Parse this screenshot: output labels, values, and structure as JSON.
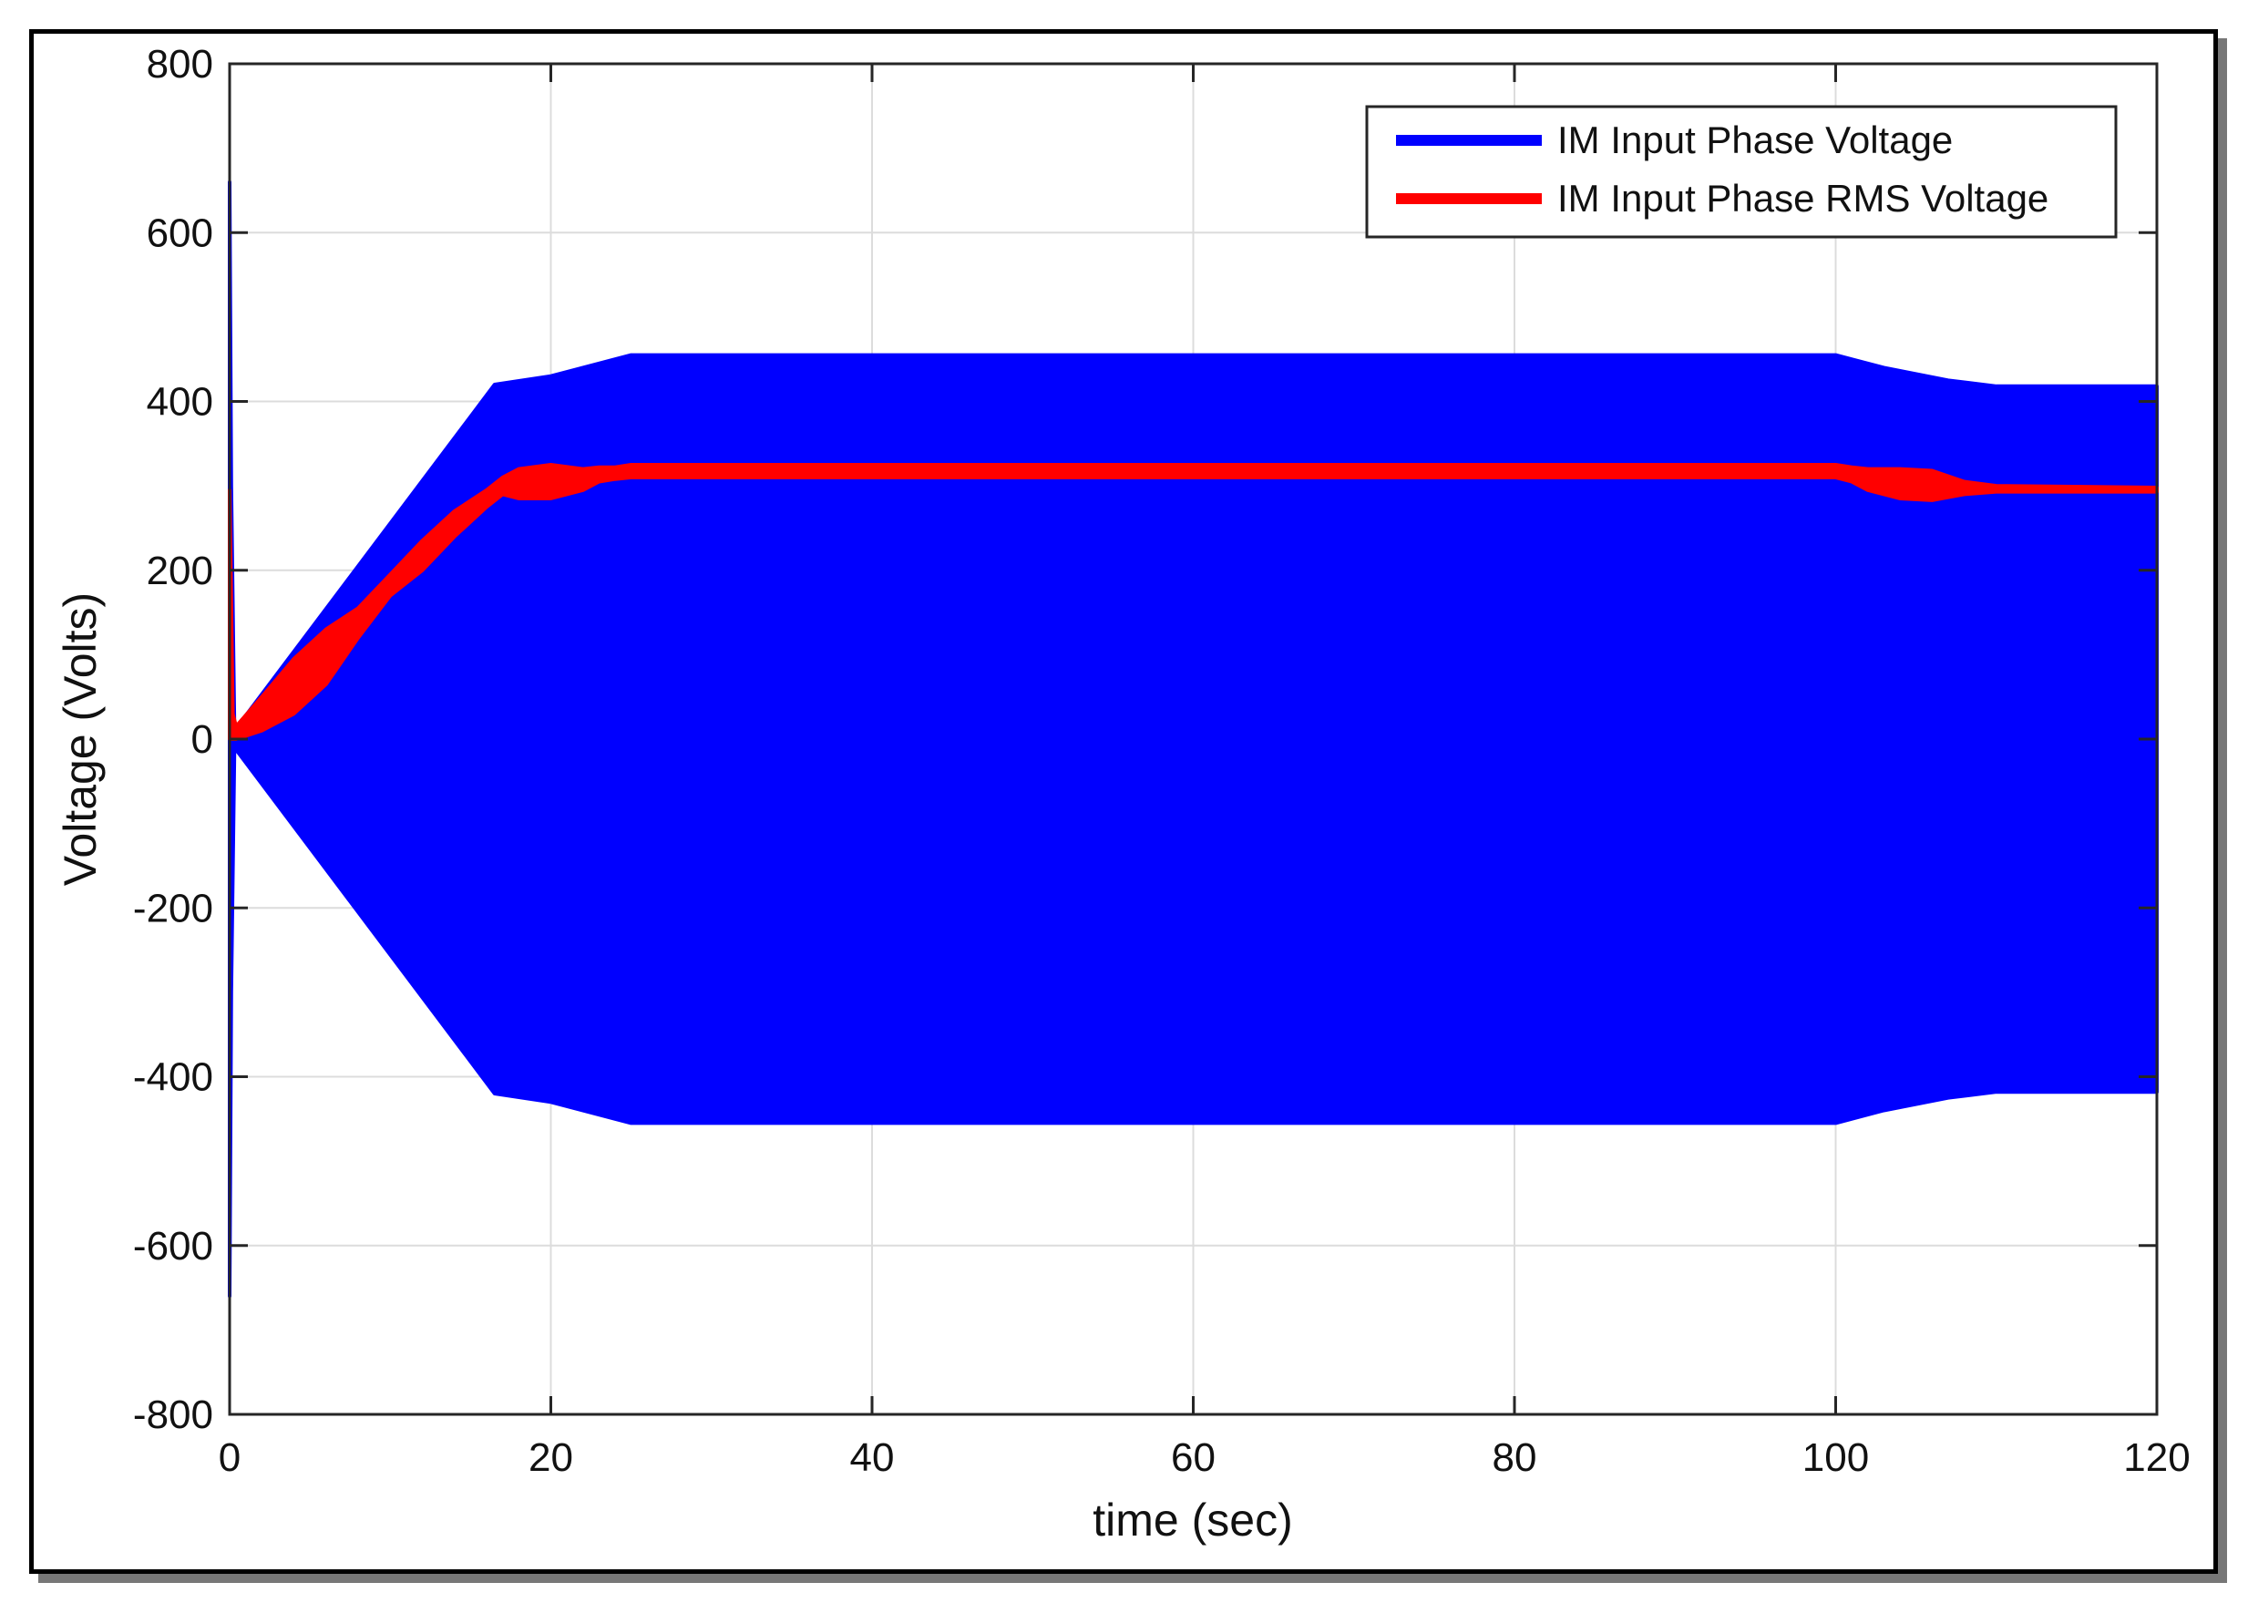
{
  "chart_data": {
    "type": "line",
    "title": "",
    "xlabel": "time (sec)",
    "ylabel": "Voltage (Volts)",
    "xlim": [
      0,
      120
    ],
    "ylim": [
      -800,
      800
    ],
    "xticks": [
      0,
      20,
      40,
      60,
      80,
      100,
      120
    ],
    "yticks": [
      -800,
      -600,
      -400,
      -200,
      0,
      200,
      400,
      600,
      800
    ],
    "xtick_labels": [
      "0",
      "20",
      "40",
      "60",
      "80",
      "100",
      "120"
    ],
    "ytick_labels": [
      "-800",
      "-600",
      "-400",
      "-200",
      "0",
      "200",
      "400",
      "600",
      "800"
    ],
    "grid": true,
    "legend_position": "top-right",
    "series": [
      {
        "name": "IM Input Phase Voltage",
        "color": "#0000ff",
        "style": "oscillating envelope (filled band between +peak and -peak)",
        "x": [
          0,
          0.1,
          0.3,
          16.5,
          20,
          23,
          25,
          100,
          103,
          107,
          110,
          120
        ],
        "upper": [
          660,
          300,
          10,
          420,
          430,
          445,
          455,
          455,
          440,
          425,
          418,
          418
        ],
        "lower": [
          -660,
          -300,
          -10,
          -420,
          -430,
          -445,
          -455,
          -455,
          -440,
          -425,
          -418,
          -418
        ]
      },
      {
        "name": "IM Input Phase RMS Voltage",
        "color": "#ff0000",
        "style": "thick band",
        "x": [
          0,
          0.2,
          0.4,
          2,
          4,
          6,
          8,
          10,
          12,
          14,
          16,
          17,
          18,
          20,
          22,
          23,
          24,
          25,
          50,
          75,
          100,
          101,
          102,
          104,
          106,
          108,
          110,
          120
        ],
        "upper": [
          295,
          30,
          15,
          50,
          95,
          130,
          155,
          195,
          235,
          270,
          295,
          310,
          320,
          325,
          320,
          322,
          322,
          325,
          325,
          325,
          325,
          322,
          320,
          320,
          318,
          305,
          300,
          298
        ],
        "lower": [
          0,
          0,
          0,
          10,
          30,
          65,
          120,
          170,
          200,
          240,
          275,
          290,
          285,
          285,
          295,
          305,
          308,
          310,
          310,
          310,
          310,
          305,
          295,
          285,
          283,
          290,
          293,
          293
        ]
      }
    ]
  }
}
